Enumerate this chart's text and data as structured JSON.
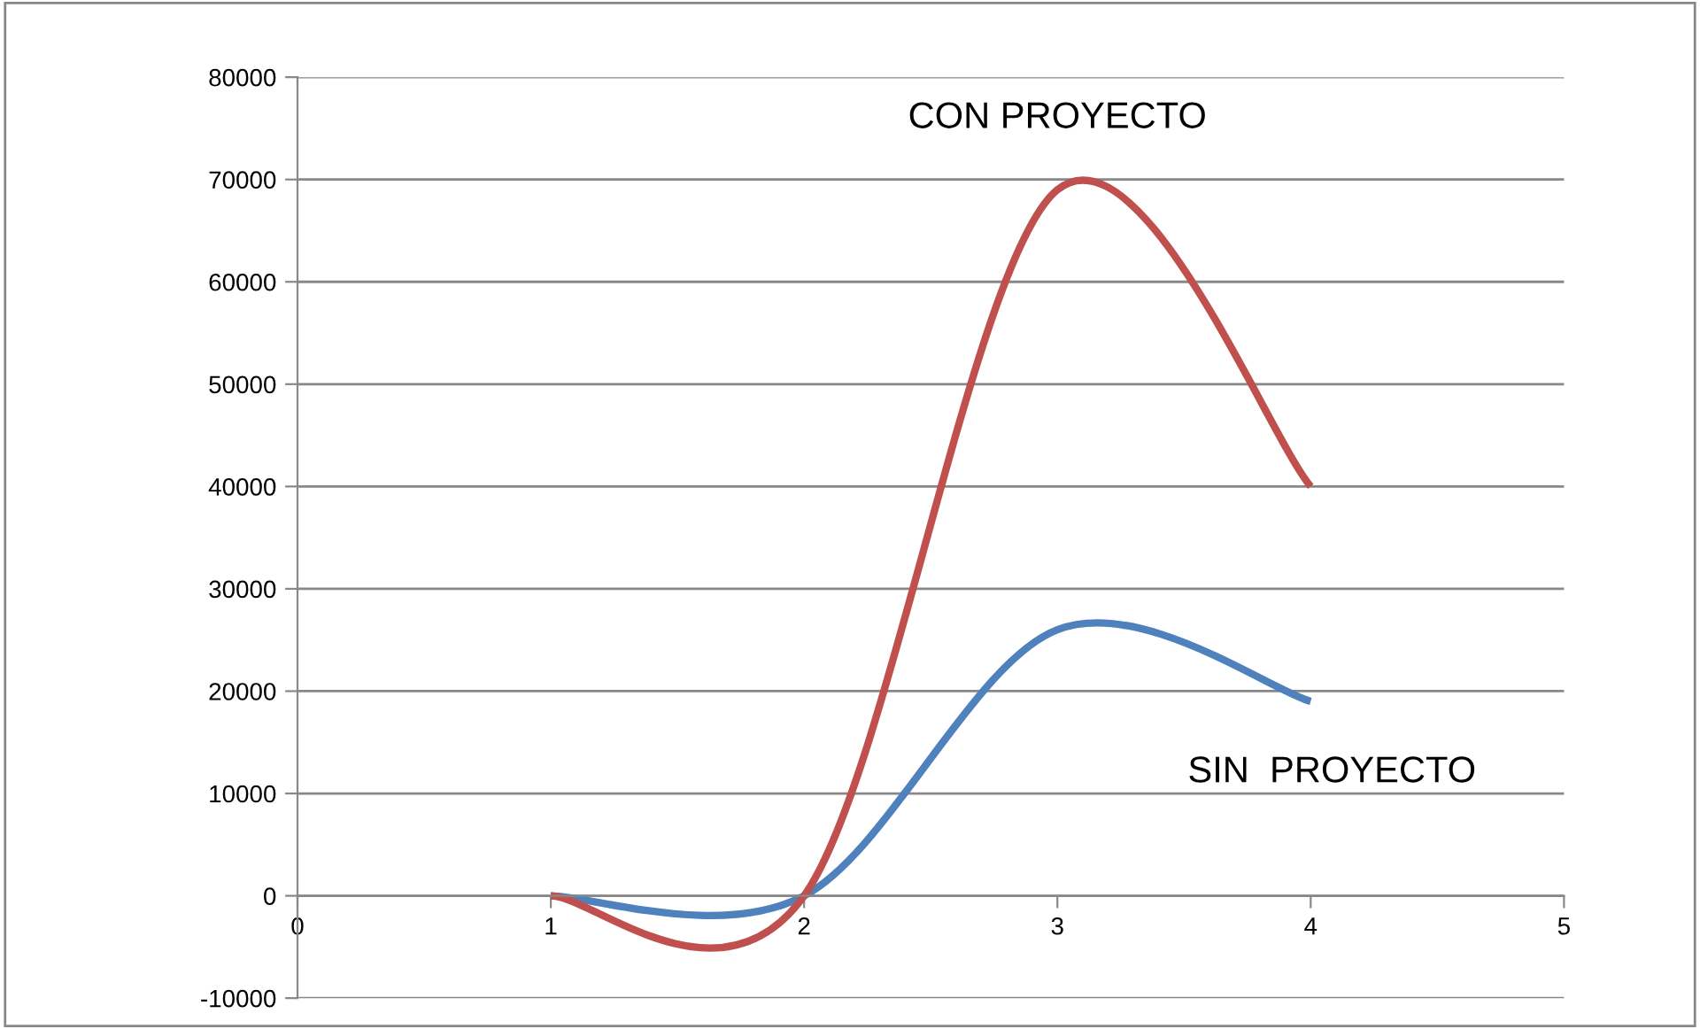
{
  "chart_data": {
    "type": "line",
    "x": [
      1,
      2,
      3,
      4
    ],
    "series": [
      {
        "name": "SIN  PROYECTO",
        "color": "#4f81bd",
        "values": [
          0,
          0,
          26000,
          19000
        ]
      },
      {
        "name": "CON PROYECTO",
        "color": "#c0504d",
        "values": [
          0,
          0,
          69000,
          40000
        ]
      }
    ],
    "xlim": [
      0,
      5
    ],
    "xticks": [
      0,
      1,
      2,
      3,
      4,
      5
    ],
    "ylim": [
      -10000,
      80000
    ],
    "yticks": [
      -10000,
      0,
      10000,
      20000,
      30000,
      40000,
      50000,
      60000,
      70000,
      80000
    ],
    "grid": "y",
    "marker": "none",
    "line_style": "solid",
    "legend": false
  }
}
